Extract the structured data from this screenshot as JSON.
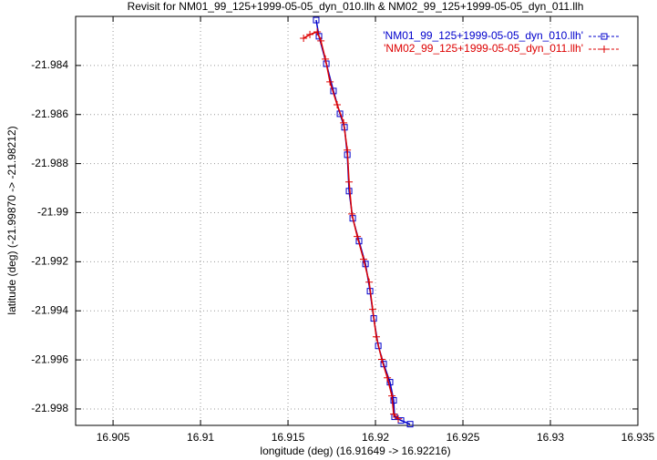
{
  "chart_data": {
    "type": "line",
    "title": "Revisit for NM01_99_125+1999-05-05_dyn_010.llh & NM02_99_125+1999-05-05_dyn_011.llh",
    "x_label": "longitude (deg) (16.91649 -> 16.92216)",
    "y_label": "latitude (deg) (-21.99870 -> -21.98212)",
    "xlim": [
      16.90286,
      16.935
    ],
    "ylim": [
      -21.99867,
      -21.982
    ],
    "xticks": [
      16.905,
      16.91,
      16.915,
      16.92,
      16.925,
      16.93,
      16.935
    ],
    "yticks": [
      -21.984,
      -21.986,
      -21.988,
      -21.99,
      -21.992,
      -21.994,
      -21.996,
      -21.998
    ],
    "grid": true,
    "legend": "top-right",
    "series": [
      {
        "name": "'NM01_99_125+1999-05-05_dyn_010.llh'",
        "color": "#0000cc",
        "marker": "square",
        "x": [
          16.91661,
          16.91677,
          16.91719,
          16.9176,
          16.91797,
          16.91823,
          16.91839,
          16.91849,
          16.9187,
          16.91906,
          16.91943,
          16.91969,
          16.9199,
          16.92016,
          16.92047,
          16.92083,
          16.92104,
          16.92109,
          16.92146,
          16.92198
        ],
        "y": [
          -21.98215,
          -21.98281,
          -21.98393,
          -21.98504,
          -21.98597,
          -21.98652,
          -21.98764,
          -21.98912,
          -21.99023,
          -21.99116,
          -21.99209,
          -21.9932,
          -21.99431,
          -21.99543,
          -21.99617,
          -21.99691,
          -21.99765,
          -21.99832,
          -21.99847,
          -21.99862
        ]
      },
      {
        "name": "'NM02_99_125+1999-05-05_dyn_011.llh'",
        "color": "#dd0000",
        "marker": "plus",
        "x": [
          16.91589,
          16.91625,
          16.91667,
          16.91688,
          16.91714,
          16.9174,
          16.91781,
          16.91818,
          16.91839,
          16.91849,
          16.91865,
          16.91896,
          16.91932,
          16.91964,
          16.91984,
          16.92005,
          16.92036,
          16.92068,
          16.92094,
          16.92104,
          16.9213
        ],
        "y": [
          -21.98289,
          -21.98274,
          -21.98263,
          -21.983,
          -21.98374,
          -21.98467,
          -21.9856,
          -21.98634,
          -21.98745,
          -21.98875,
          -21.99005,
          -21.99097,
          -21.9919,
          -21.99283,
          -21.99394,
          -21.99506,
          -21.99598,
          -21.99673,
          -21.99747,
          -21.99821,
          -21.9984
        ]
      }
    ]
  }
}
